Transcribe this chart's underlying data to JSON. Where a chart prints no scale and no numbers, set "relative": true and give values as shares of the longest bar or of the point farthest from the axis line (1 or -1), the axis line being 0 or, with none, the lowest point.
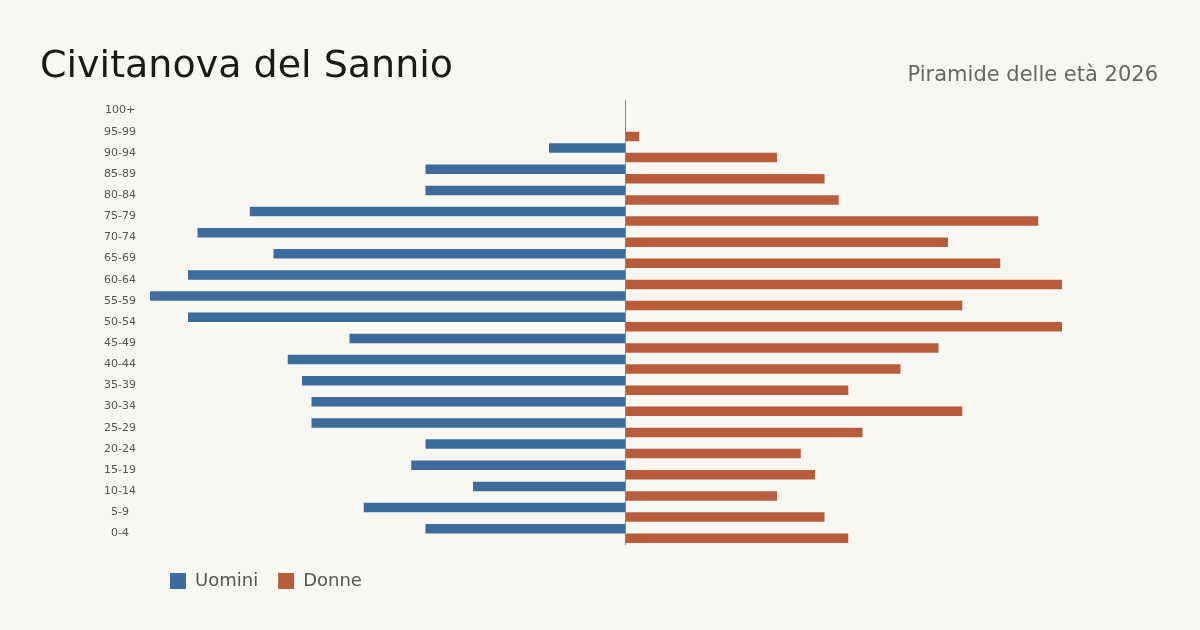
{
  "chart_data": {
    "type": "bar",
    "orientation": "horizontal",
    "relative": true,
    "title": "Civitanova del Sannio",
    "subtitle": "Piramide delle età 2026",
    "legend": "bottom left",
    "grid": false,
    "categories": [
      "100+",
      "95-99",
      "90-94",
      "85-89",
      "80-84",
      "75-79",
      "70-74",
      "65-69",
      "60-64",
      "55-59",
      "50-54",
      "45-49",
      "40-44",
      "35-39",
      "30-34",
      "25-29",
      "20-24",
      "15-19",
      "10-14",
      "5-9",
      "0-4"
    ],
    "series": [
      {
        "name": "Uomini",
        "color": "#3d6b9c",
        "values": [
          0,
          0,
          -0.16,
          -0.42,
          -0.42,
          -0.79,
          -0.9,
          -0.74,
          -0.92,
          -1,
          -0.92,
          -0.58,
          -0.71,
          -0.68,
          -0.66,
          -0.66,
          -0.42,
          -0.45,
          -0.32,
          -0.55,
          -0.42
        ]
      },
      {
        "name": "Donne",
        "color": "#b85c3c",
        "values": [
          0,
          0.03,
          0.32,
          0.42,
          0.45,
          0.87,
          0.68,
          0.79,
          0.92,
          0.71,
          0.92,
          0.66,
          0.58,
          0.47,
          0.71,
          0.5,
          0.37,
          0.4,
          0.32,
          0.42,
          0.47
        ]
      }
    ]
  }
}
